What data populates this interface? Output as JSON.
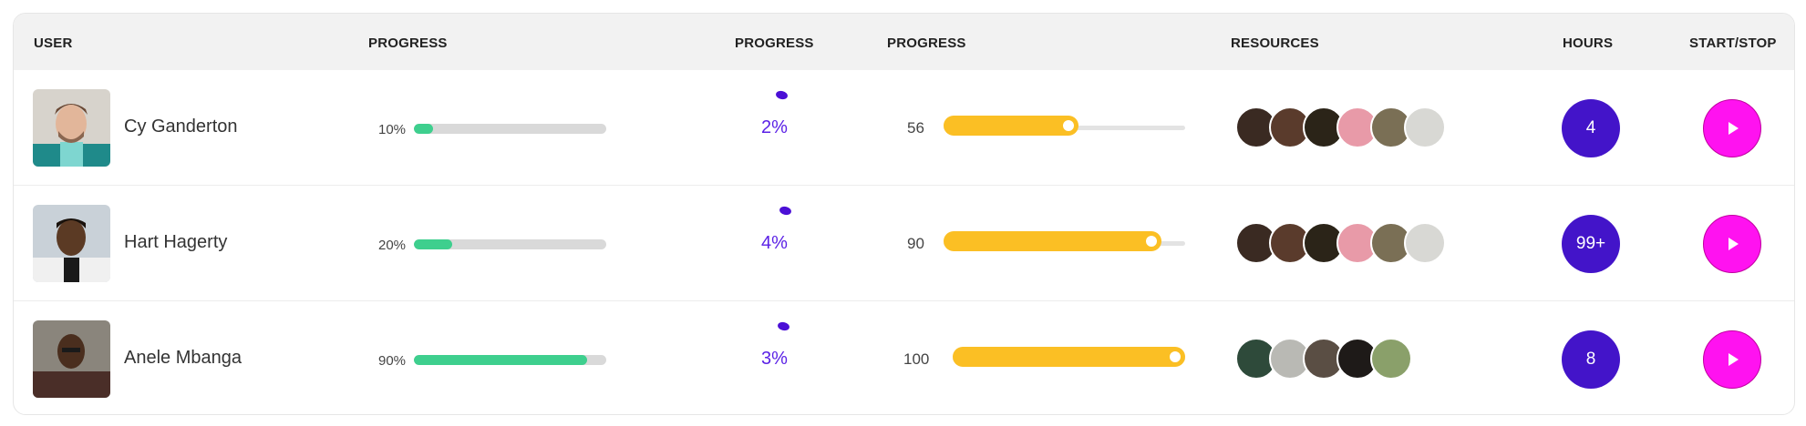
{
  "headers": {
    "user": "USER",
    "progress1": "PROGRESS",
    "progress2": "PROGRESS",
    "progress3": "PROGRESS",
    "resources": "RESOURCES",
    "hours": "HOURS",
    "start_stop": "START/STOP"
  },
  "colors": {
    "progress_fill": "#3ecf8e",
    "slider_fill": "#fbbf24",
    "spinner_accent": "#5b21e6",
    "hours_badge": "#4314c9",
    "play_button": "#ff12f0"
  },
  "rows": [
    {
      "name": "Cy Ganderton",
      "progress_label": "10%",
      "progress_value": 10,
      "spinner_label": "2%",
      "slider_label": "56",
      "slider_value": 56,
      "resources_count": 6,
      "hours": "4",
      "play_icon": "play-icon"
    },
    {
      "name": "Hart Hagerty",
      "progress_label": "20%",
      "progress_value": 20,
      "spinner_label": "4%",
      "slider_label": "90",
      "slider_value": 90,
      "resources_count": 6,
      "hours": "99+",
      "play_icon": "play-icon"
    },
    {
      "name": "Anele Mbanga",
      "progress_label": "90%",
      "progress_value": 90,
      "spinner_label": "3%",
      "slider_label": "100",
      "slider_value": 100,
      "resources_count": 5,
      "hours": "8",
      "play_icon": "play-icon"
    }
  ]
}
